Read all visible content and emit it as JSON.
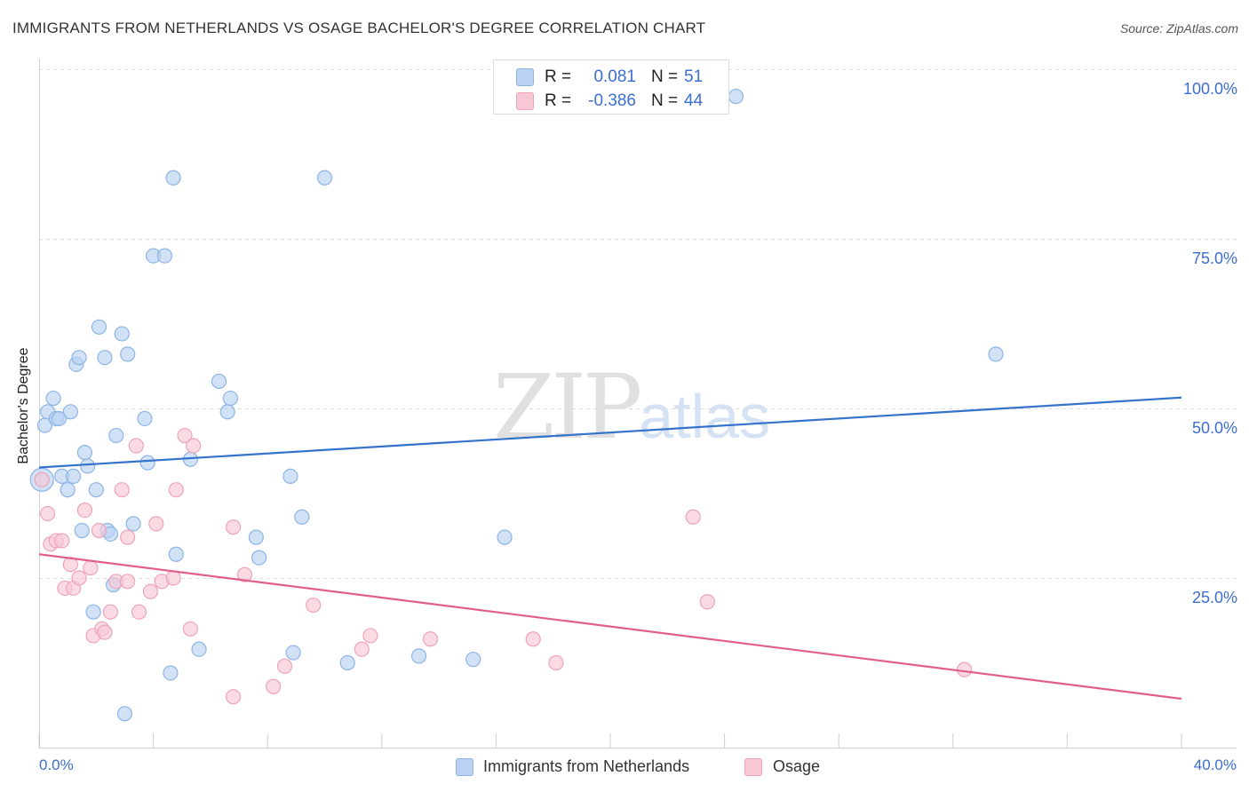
{
  "title": "IMMIGRANTS FROM NETHERLANDS VS OSAGE BACHELOR'S DEGREE CORRELATION CHART",
  "source": "Source: ZipAtlas.com",
  "watermark": {
    "zip": "ZIP",
    "atlas": "atlas"
  },
  "colors": {
    "blue_fill": "#b9d2f3",
    "blue_stroke": "#8db4e6",
    "blue_line": "#3572cc",
    "pink_fill": "#f8c7d6",
    "pink_stroke": "#eea3bb",
    "pink_line": "#e0608a",
    "axis_text": "#3c6fd0"
  },
  "legend_top": [
    {
      "r_label": "R =",
      "r_value": "0.081",
      "n_label": "N =",
      "n_value": "51",
      "color": "#b9d2f3",
      "border": "#8db4e6"
    },
    {
      "r_label": "R =",
      "r_value": "-0.386",
      "n_label": "N =",
      "n_value": "44",
      "color": "#f8c7d6",
      "border": "#eea3bb"
    }
  ],
  "legend_bottom": [
    {
      "label": "Immigrants from Netherlands",
      "color": "#b9d2f3",
      "border": "#8db4e6"
    },
    {
      "label": "Osage",
      "color": "#f8c7d6",
      "border": "#eea3bb"
    }
  ],
  "chart_data": {
    "type": "scatter",
    "title": "IMMIGRANTS FROM NETHERLANDS VS OSAGE BACHELOR'S DEGREE CORRELATION CHART",
    "xlabel": "",
    "ylabel": "Bachelor's Degree",
    "xlim": [
      0,
      40
    ],
    "ylim": [
      0,
      100
    ],
    "x_tick_labels": [
      "0.0%",
      "40.0%"
    ],
    "y_ticks": [
      25,
      50,
      75,
      100
    ],
    "y_tick_labels": [
      "25.0%",
      "50.0%",
      "75.0%",
      "100.0%"
    ],
    "grid": true,
    "legend": "top-center",
    "series": [
      {
        "name": "Immigrants from Netherlands",
        "r": 0.081,
        "n": 51,
        "trend": {
          "x": [
            0,
            40
          ],
          "y": [
            41.3,
            51.6
          ]
        },
        "points": [
          [
            0.1,
            39.5
          ],
          [
            0.2,
            47.5
          ],
          [
            0.3,
            49.5
          ],
          [
            0.5,
            51.5
          ],
          [
            0.6,
            48.5
          ],
          [
            0.7,
            48.5
          ],
          [
            0.8,
            40.0
          ],
          [
            1.0,
            38.0
          ],
          [
            1.1,
            49.5
          ],
          [
            1.2,
            40.0
          ],
          [
            1.3,
            56.5
          ],
          [
            1.4,
            57.5
          ],
          [
            1.5,
            32.0
          ],
          [
            1.6,
            43.5
          ],
          [
            1.7,
            41.5
          ],
          [
            1.9,
            20.0
          ],
          [
            2.0,
            38.0
          ],
          [
            2.1,
            62.0
          ],
          [
            2.3,
            57.5
          ],
          [
            2.4,
            32.0
          ],
          [
            2.5,
            31.5
          ],
          [
            2.6,
            24.0
          ],
          [
            2.7,
            46.0
          ],
          [
            2.9,
            61.0
          ],
          [
            3.0,
            5.0
          ],
          [
            3.1,
            58.0
          ],
          [
            3.3,
            33.0
          ],
          [
            3.7,
            48.5
          ],
          [
            3.8,
            42.0
          ],
          [
            4.0,
            72.5
          ],
          [
            4.4,
            72.5
          ],
          [
            4.6,
            11.0
          ],
          [
            4.7,
            84.0
          ],
          [
            4.8,
            28.5
          ],
          [
            5.3,
            42.5
          ],
          [
            5.6,
            14.5
          ],
          [
            6.3,
            54.0
          ],
          [
            6.6,
            49.5
          ],
          [
            6.7,
            51.5
          ],
          [
            7.6,
            31.0
          ],
          [
            7.7,
            28.0
          ],
          [
            8.8,
            40.0
          ],
          [
            8.9,
            14.0
          ],
          [
            9.2,
            34.0
          ],
          [
            10.0,
            84.0
          ],
          [
            10.8,
            12.5
          ],
          [
            13.3,
            13.5
          ],
          [
            15.2,
            13.0
          ],
          [
            16.3,
            31.0
          ],
          [
            24.4,
            96.0
          ],
          [
            33.5,
            58.0
          ]
        ]
      },
      {
        "name": "Osage",
        "r": -0.386,
        "n": 44,
        "trend": {
          "x": [
            0,
            40
          ],
          "y": [
            28.5,
            7.2
          ]
        },
        "points": [
          [
            0.1,
            39.5
          ],
          [
            0.3,
            34.5
          ],
          [
            0.4,
            30.0
          ],
          [
            0.6,
            30.5
          ],
          [
            0.8,
            30.5
          ],
          [
            0.9,
            23.5
          ],
          [
            1.1,
            27.0
          ],
          [
            1.2,
            23.5
          ],
          [
            1.4,
            25.0
          ],
          [
            1.6,
            35.0
          ],
          [
            1.8,
            26.5
          ],
          [
            1.9,
            16.5
          ],
          [
            2.1,
            32.0
          ],
          [
            2.2,
            17.5
          ],
          [
            2.3,
            17.0
          ],
          [
            2.5,
            20.0
          ],
          [
            2.7,
            24.5
          ],
          [
            2.9,
            38.0
          ],
          [
            3.1,
            31.0
          ],
          [
            3.1,
            24.5
          ],
          [
            3.4,
            44.5
          ],
          [
            3.5,
            20.0
          ],
          [
            3.9,
            23.0
          ],
          [
            4.1,
            33.0
          ],
          [
            4.3,
            24.5
          ],
          [
            4.7,
            25.0
          ],
          [
            4.8,
            38.0
          ],
          [
            5.1,
            46.0
          ],
          [
            5.3,
            17.5
          ],
          [
            5.4,
            44.5
          ],
          [
            6.8,
            7.5
          ],
          [
            6.8,
            32.5
          ],
          [
            7.2,
            25.5
          ],
          [
            8.2,
            9.0
          ],
          [
            8.6,
            12.0
          ],
          [
            9.6,
            21.0
          ],
          [
            11.3,
            14.5
          ],
          [
            11.6,
            16.5
          ],
          [
            13.7,
            16.0
          ],
          [
            17.3,
            16.0
          ],
          [
            18.1,
            12.5
          ],
          [
            22.9,
            34.0
          ],
          [
            23.4,
            21.5
          ],
          [
            32.4,
            11.5
          ]
        ]
      }
    ]
  }
}
